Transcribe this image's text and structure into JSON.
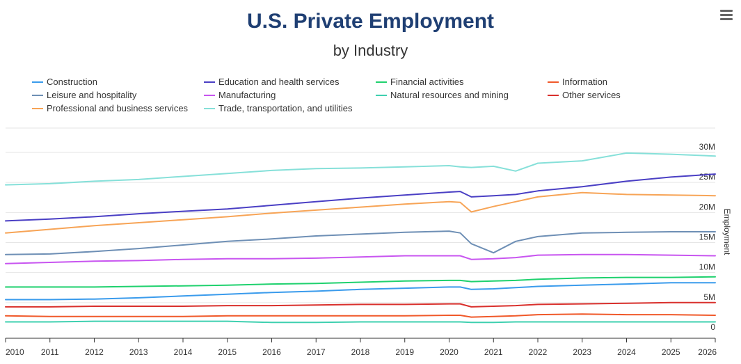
{
  "header": {
    "title": "U.S. Private Employment",
    "subtitle": "by Industry",
    "menu_icon": "hamburger-menu-icon"
  },
  "chart_data": {
    "type": "line",
    "title": "U.S. Private Employment",
    "subtitle": "by Industry",
    "xlabel": "",
    "ylabel": "Employment",
    "xlim": [
      2010,
      2026
    ],
    "ylim": [
      0,
      30000000
    ],
    "x_ticks": [
      "2010",
      "2011",
      "2012",
      "2013",
      "2014",
      "2015",
      "2016",
      "2017",
      "2018",
      "2019",
      "2020",
      "2021",
      "2022",
      "2023",
      "2024",
      "2025",
      "2026"
    ],
    "y_ticks": [
      "0",
      "5M",
      "10M",
      "15M",
      "20M",
      "25M",
      "30M"
    ],
    "y_tick_values": [
      0,
      5000000,
      10000000,
      15000000,
      20000000,
      25000000,
      30000000
    ],
    "y_axis_position": "right",
    "legend_position": "top",
    "x": [
      2010,
      2011,
      2012,
      2013,
      2014,
      2015,
      2016,
      2017,
      2018,
      2019,
      2020.0,
      2020.25,
      2020.5,
      2021,
      2021.5,
      2022,
      2023,
      2024,
      2025,
      2026
    ],
    "series": [
      {
        "name": "Construction",
        "color": "#3a9bec",
        "values": [
          5.5,
          5.5,
          5.6,
          5.8,
          6.1,
          6.4,
          6.7,
          6.9,
          7.2,
          7.4,
          7.6,
          7.6,
          7.2,
          7.3,
          7.5,
          7.7,
          7.9,
          8.1,
          8.3,
          8.3
        ]
      },
      {
        "name": "Education and health services",
        "color": "#4a3fc4",
        "values": [
          18.6,
          18.9,
          19.3,
          19.8,
          20.2,
          20.6,
          21.2,
          21.8,
          22.4,
          22.9,
          23.4,
          23.5,
          22.6,
          22.8,
          23.0,
          23.6,
          24.3,
          25.2,
          25.9,
          26.4
        ]
      },
      {
        "name": "Financial activities",
        "color": "#1fd16e",
        "values": [
          7.6,
          7.6,
          7.6,
          7.7,
          7.8,
          7.9,
          8.1,
          8.2,
          8.4,
          8.6,
          8.7,
          8.7,
          8.5,
          8.6,
          8.7,
          8.9,
          9.1,
          9.2,
          9.2,
          9.3
        ]
      },
      {
        "name": "Information",
        "color": "#f0592a",
        "values": [
          2.8,
          2.7,
          2.7,
          2.7,
          2.7,
          2.8,
          2.8,
          2.8,
          2.8,
          2.8,
          2.9,
          2.9,
          2.6,
          2.7,
          2.8,
          3.0,
          3.1,
          3.0,
          3.0,
          2.9
        ]
      },
      {
        "name": "Leisure and hospitality",
        "color": "#6e8fb5",
        "values": [
          13.0,
          13.1,
          13.5,
          14.0,
          14.6,
          15.2,
          15.6,
          16.1,
          16.4,
          16.7,
          16.9,
          16.6,
          14.8,
          13.3,
          15.2,
          16.0,
          16.6,
          16.7,
          16.8,
          16.8
        ]
      },
      {
        "name": "Manufacturing",
        "color": "#c855f0",
        "values": [
          11.5,
          11.7,
          11.9,
          12.0,
          12.2,
          12.3,
          12.3,
          12.4,
          12.6,
          12.8,
          12.8,
          12.8,
          12.2,
          12.3,
          12.5,
          12.9,
          13.0,
          13.0,
          12.9,
          12.8
        ]
      },
      {
        "name": "Natural resources and mining",
        "color": "#3fd0b0",
        "values": [
          1.8,
          1.8,
          1.9,
          1.9,
          1.9,
          1.9,
          1.7,
          1.7,
          1.8,
          1.8,
          1.8,
          1.8,
          1.7,
          1.7,
          1.8,
          1.8,
          1.8,
          1.8,
          1.8,
          1.8
        ]
      },
      {
        "name": "Other services",
        "color": "#d9302c",
        "values": [
          4.3,
          4.3,
          4.4,
          4.4,
          4.4,
          4.5,
          4.5,
          4.6,
          4.7,
          4.7,
          4.8,
          4.8,
          4.3,
          4.4,
          4.5,
          4.7,
          4.8,
          4.9,
          5.0,
          5.0
        ]
      },
      {
        "name": "Professional and business services",
        "color": "#f7a456",
        "values": [
          16.6,
          17.2,
          17.8,
          18.3,
          18.8,
          19.3,
          19.9,
          20.4,
          20.9,
          21.4,
          21.8,
          21.7,
          20.1,
          21.0,
          21.8,
          22.6,
          23.3,
          23.0,
          22.9,
          22.8
        ]
      },
      {
        "name": "Trade, transportation, and utilities",
        "color": "#86e0d9",
        "values": [
          24.6,
          24.8,
          25.2,
          25.5,
          26.0,
          26.5,
          27.0,
          27.3,
          27.4,
          27.6,
          27.8,
          27.6,
          27.5,
          27.7,
          26.9,
          28.2,
          28.6,
          29.9,
          29.7,
          29.4
        ]
      }
    ]
  }
}
